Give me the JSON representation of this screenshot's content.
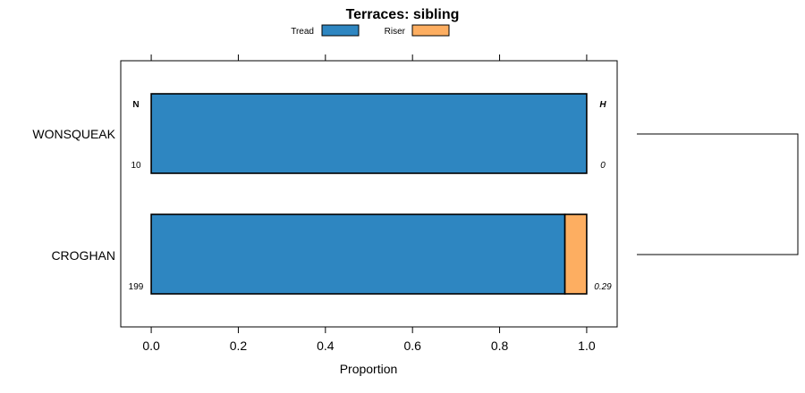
{
  "chart_data": {
    "type": "bar",
    "orientation": "horizontal",
    "stacked": true,
    "title": "Terraces: sibling",
    "xlabel": "Proportion",
    "ylabel": "",
    "xlim": [
      -0.07,
      1.07
    ],
    "xticks": [
      0.0,
      0.2,
      0.4,
      0.6,
      0.8,
      1.0
    ],
    "xtick_labels": [
      "0.0",
      "0.2",
      "0.4",
      "0.6",
      "0.8",
      "1.0"
    ],
    "categories": [
      "WONSQUEAK",
      "CROGHAN"
    ],
    "series": [
      {
        "name": "Tread",
        "color": "#2E86C1",
        "values": [
          1.0,
          0.95
        ]
      },
      {
        "name": "Riser",
        "color": "#FDAE61",
        "values": [
          0.0,
          0.05
        ]
      }
    ],
    "n_header": "N",
    "h_header": "H",
    "n_values": [
      "10",
      "199"
    ],
    "h_values": [
      "0",
      "0.29"
    ],
    "legend_position": "top"
  }
}
